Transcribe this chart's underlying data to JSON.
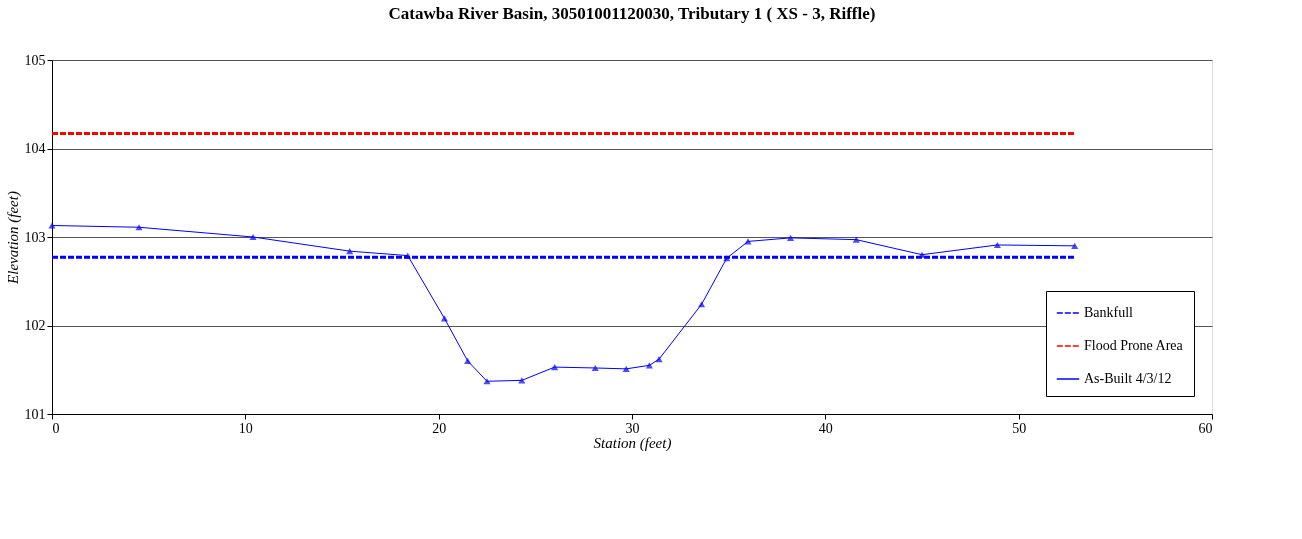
{
  "chart_data": {
    "type": "line",
    "title": "Catawba River Basin, 30501001120030, Tributary 1  ( XS - 3, Riffle)",
    "xlabel": "Station (feet)",
    "ylabel": "Elevation (feet)",
    "xlim": [
      0,
      60
    ],
    "xticks": [
      0,
      10,
      20,
      30,
      40,
      50,
      60
    ],
    "ylim": [
      101,
      105
    ],
    "yticks": [
      101,
      102,
      103,
      104,
      105
    ],
    "grid": "y",
    "legend": "bottom right",
    "series": [
      {
        "name": "Bankfull",
        "color": "#0000ff",
        "line_style": "dashed",
        "marker": "none",
        "x": [
          0,
          52.9
        ],
        "values": [
          102.77,
          102.77
        ]
      },
      {
        "name": "Flood Prone Area",
        "color": "#ff0000",
        "line_style": "dashed",
        "marker": "none",
        "x": [
          0,
          52.9
        ],
        "values": [
          104.17,
          104.17
        ]
      },
      {
        "name": "As-Built 4/3/12",
        "color": "#0000ff",
        "line_style": "solid",
        "marker": "triangle",
        "x": [
          0,
          4.5,
          10.4,
          15.4,
          18.4,
          20.3,
          21.5,
          22.5,
          24.3,
          26.0,
          28.1,
          29.7,
          30.9,
          31.4,
          33.6,
          34.9,
          36.0,
          38.2,
          41.6,
          45.0,
          48.9,
          52.9
        ],
        "values": [
          103.13,
          103.11,
          103.0,
          102.84,
          102.79,
          102.08,
          101.6,
          101.37,
          101.38,
          101.53,
          101.52,
          101.51,
          101.55,
          101.62,
          102.24,
          102.76,
          102.95,
          102.99,
          102.97,
          102.8,
          102.91,
          102.9
        ]
      }
    ]
  }
}
